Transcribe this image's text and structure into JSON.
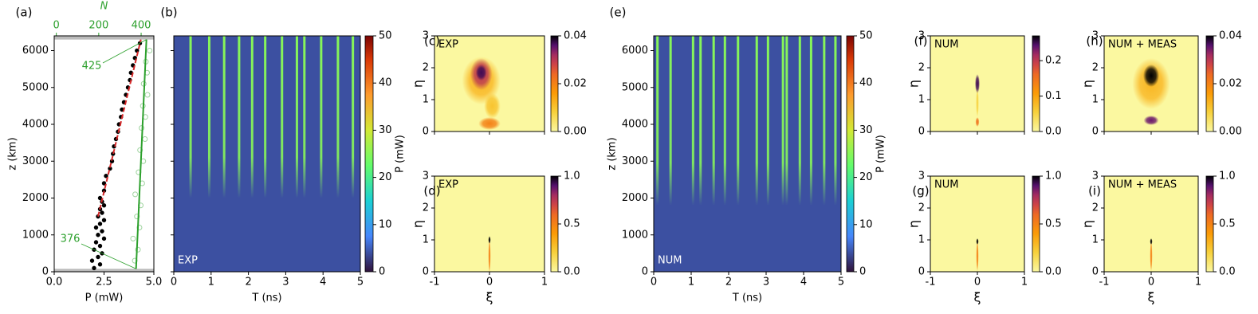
{
  "chart_data": [
    {
      "type": "scatter",
      "label": "(a)",
      "xlabel": "P (mW)",
      "ylabel": "z (km)",
      "x2label": "N",
      "xlim": [
        0,
        5
      ],
      "xticks": [
        {
          "value": 0,
          "label": "0.0"
        },
        2.5,
        {
          "value": 5,
          "label": "5.0"
        }
      ],
      "ylim": [
        0,
        6400
      ],
      "yticks": [
        0,
        1000,
        2000,
        3000,
        4000,
        5000,
        6000
      ],
      "x2lim": [
        -10,
        460
      ],
      "x2ticks": [
        0,
        200,
        400
      ],
      "x2color": "#2ca02c",
      "shaded_bands": [
        [
          0,
          80
        ],
        [
          6300,
          6400
        ]
      ],
      "series": [
        {
          "style": "points",
          "color": "#000000",
          "x": [
            2.0,
            2.3,
            1.9,
            2.2,
            2.4,
            2.0,
            2.3,
            2.1,
            2.5,
            2.2,
            2.4,
            2.1,
            2.3,
            2.5,
            2.2,
            2.4,
            2.3,
            2.5,
            2.4,
            2.3,
            2.5,
            2.5,
            2.6,
            2.8,
            2.9,
            2.95,
            3.0,
            3.1,
            3.2,
            3.25,
            3.35,
            3.4,
            3.5,
            3.6,
            3.7,
            3.8,
            3.85,
            3.95,
            4.05,
            4.15,
            4.3
          ],
          "y": [
            100,
            200,
            300,
            400,
            500,
            600,
            700,
            800,
            900,
            1000,
            1100,
            1200,
            1300,
            1400,
            1500,
            1600,
            1700,
            1800,
            1900,
            2000,
            2200,
            2400,
            2600,
            2800,
            3000,
            3200,
            3400,
            3600,
            3800,
            4000,
            4200,
            4400,
            4600,
            4800,
            5000,
            5200,
            5400,
            5600,
            5800,
            6000,
            6200
          ]
        },
        {
          "style": "dashed",
          "color": "#d62728",
          "x": [
            2.2,
            4.35
          ],
          "y": [
            1500,
            6300
          ]
        },
        {
          "style": "open",
          "color": "#2ca02c",
          "axis": "x2",
          "x": [
            370,
            385,
            362,
            392,
            380,
            398,
            372,
            405,
            388,
            410,
            395,
            418,
            402,
            420,
            408,
            430,
            412,
            428,
            422,
            440
          ],
          "y": [
            300,
            600,
            900,
            1200,
            1500,
            1800,
            2100,
            2400,
            2700,
            3000,
            3300,
            3600,
            3900,
            4200,
            4500,
            4800,
            5100,
            5400,
            5700,
            6000
          ]
        },
        {
          "style": "line",
          "color": "#2ca02c",
          "axis": "x2",
          "x": [
            376,
            425
          ],
          "y": [
            80,
            6300
          ]
        }
      ],
      "annotations": [
        "425",
        "376"
      ]
    },
    {
      "type": "heatmap",
      "label": "(b)",
      "xlabel": "T (ns)",
      "inset": "EXP",
      "show_yticklabels": false,
      "xlim": [
        0,
        5
      ],
      "xticks": [
        0,
        1,
        2,
        3,
        4,
        5
      ],
      "ylim": [
        0,
        6400
      ],
      "yticks": [
        0,
        1000,
        2000,
        3000,
        4000,
        5000,
        6000
      ],
      "colormap": "turbo",
      "background_value": 4,
      "streaks": {
        "t": [
          0.45,
          0.95,
          1.35,
          1.75,
          2.1,
          2.45,
          2.9,
          3.3,
          3.5,
          3.95,
          4.4,
          4.8
        ],
        "z_start": 2000,
        "value": 25
      },
      "colorbar": {
        "label": "P (mW)",
        "lim": [
          0,
          50
        ],
        "ticks": [
          0,
          10,
          20,
          30,
          40,
          50
        ]
      }
    },
    {
      "type": "heatmap",
      "label": "(c)",
      "ylabel": "η",
      "inset": "EXP",
      "show_xticklabels": false,
      "xlim": [
        -1,
        1
      ],
      "xticks": [
        -1,
        0,
        1
      ],
      "ylim": [
        0,
        3
      ],
      "yticks": [
        0,
        1,
        2,
        3
      ],
      "colormap": "inferno_r",
      "background_value": 0,
      "peaks": [
        {
          "x": -0.15,
          "y": 1.6,
          "rx": 0.35,
          "ry": 0.75,
          "value": 0.012
        },
        {
          "x": -0.15,
          "y": 1.8,
          "rx": 0.2,
          "ry": 0.5,
          "value": 0.03
        },
        {
          "x": -0.15,
          "y": 1.85,
          "rx": 0.1,
          "ry": 0.25,
          "value": 0.037
        },
        {
          "x": 0.05,
          "y": 0.8,
          "rx": 0.15,
          "ry": 0.4,
          "value": 0.01
        },
        {
          "x": 0.0,
          "y": 0.25,
          "rx": 0.2,
          "ry": 0.2,
          "value": 0.02
        }
      ],
      "colorbar": {
        "lim": [
          0,
          0.04
        ],
        "ticks": [
          {
            "value": 0,
            "label": "0.00"
          },
          0.02,
          0.04
        ]
      }
    },
    {
      "type": "heatmap",
      "label": "(d)",
      "ylabel": "η",
      "xlabel": "ξ",
      "inset": "EXP",
      "xlim": [
        -1,
        1
      ],
      "xticks": [
        -1,
        0,
        1
      ],
      "ylim": [
        0,
        3
      ],
      "yticks": [
        0,
        1,
        2,
        3
      ],
      "colormap": "inferno_r",
      "background_value": 0,
      "peaks": [
        {
          "x": 0,
          "y": 0.5,
          "rx": 0.02,
          "ry": 0.55,
          "value": 0.5
        },
        {
          "x": 0,
          "y": 1.0,
          "rx": 0.02,
          "ry": 0.12,
          "value": 1.0
        }
      ],
      "colorbar": {
        "lim": [
          0,
          1
        ],
        "ticks": [
          {
            "value": 0,
            "label": "0.0"
          },
          0.5,
          {
            "value": 1,
            "label": "1.0"
          }
        ]
      }
    },
    {
      "type": "heatmap",
      "label": "(e)",
      "xlabel": "T (ns)",
      "ylabel": "z (km)",
      "inset": "NUM",
      "xlim": [
        0,
        5
      ],
      "xticks": [
        0,
        1,
        2,
        3,
        4,
        5
      ],
      "ylim": [
        0,
        6400
      ],
      "yticks": [
        0,
        1000,
        2000,
        3000,
        4000,
        5000,
        6000
      ],
      "colormap": "turbo",
      "background_value": 4,
      "streaks": {
        "t": [
          0.1,
          0.45,
          1.05,
          1.25,
          1.6,
          1.9,
          2.25,
          2.75,
          3.05,
          3.45,
          3.55,
          3.9,
          4.2,
          4.55,
          4.85
        ],
        "z_start": 1800,
        "value": 25
      },
      "colorbar": {
        "label": "P (mW)",
        "lim": [
          0,
          50
        ],
        "ticks": [
          0,
          10,
          20,
          30,
          40,
          50
        ]
      }
    },
    {
      "type": "heatmap",
      "label": "(f)",
      "ylabel": "η",
      "inset": "NUM",
      "show_xticklabels": false,
      "xlim": [
        -1,
        1
      ],
      "xticks": [
        -1,
        0,
        1
      ],
      "ylim": [
        0,
        3
      ],
      "yticks": [
        0,
        1,
        2,
        3
      ],
      "colormap": "inferno_r",
      "background_value": 0,
      "peaks": [
        {
          "x": 0,
          "y": 0.9,
          "rx": 0.03,
          "ry": 0.45,
          "value": 0.05
        },
        {
          "x": 0,
          "y": 1.5,
          "rx": 0.05,
          "ry": 0.3,
          "value": 0.25
        },
        {
          "x": 0,
          "y": 0.3,
          "rx": 0.04,
          "ry": 0.15,
          "value": 0.15
        }
      ],
      "colorbar": {
        "lim": [
          0,
          0.27
        ],
        "ticks": [
          {
            "value": 0,
            "label": "0.0"
          },
          0.1,
          0.2
        ]
      }
    },
    {
      "type": "heatmap",
      "label": "(g)",
      "ylabel": "η",
      "xlabel": "ξ",
      "inset": "NUM",
      "xlim": [
        -1,
        1
      ],
      "xticks": [
        -1,
        0,
        1
      ],
      "ylim": [
        0,
        3
      ],
      "yticks": [
        0,
        1,
        2,
        3
      ],
      "colormap": "inferno_r",
      "background_value": 0,
      "peaks": [
        {
          "x": 0,
          "y": 0.5,
          "rx": 0.02,
          "ry": 0.5,
          "value": 0.5
        },
        {
          "x": 0,
          "y": 0.95,
          "rx": 0.02,
          "ry": 0.1,
          "value": 1.0
        }
      ],
      "colorbar": {
        "lim": [
          0,
          1
        ],
        "ticks": [
          {
            "value": 0,
            "label": "0.0"
          },
          0.5,
          {
            "value": 1,
            "label": "1.0"
          }
        ]
      }
    },
    {
      "type": "heatmap",
      "label": "(h)",
      "ylabel": "η",
      "inset": "NUM + MEAS",
      "show_xticklabels": false,
      "xlim": [
        -1,
        1
      ],
      "xticks": [
        -1,
        0,
        1
      ],
      "ylim": [
        0,
        3
      ],
      "yticks": [
        0,
        1,
        2,
        3
      ],
      "colormap": "inferno_r",
      "background_value": 0,
      "peaks": [
        {
          "x": 0,
          "y": 1.5,
          "rx": 0.4,
          "ry": 0.8,
          "value": 0.012
        },
        {
          "x": 0,
          "y": 1.75,
          "rx": 0.17,
          "ry": 0.35,
          "value": 0.04
        },
        {
          "x": 0,
          "y": 0.35,
          "rx": 0.16,
          "ry": 0.15,
          "value": 0.035
        }
      ],
      "colorbar": {
        "lim": [
          0,
          0.04
        ],
        "ticks": [
          {
            "value": 0,
            "label": "0.00"
          },
          0.02,
          0.04
        ]
      }
    },
    {
      "type": "heatmap",
      "label": "(i)",
      "ylabel": "η",
      "xlabel": "ξ",
      "inset": "NUM + MEAS",
      "xlim": [
        -1,
        1
      ],
      "xticks": [
        -1,
        0,
        1
      ],
      "ylim": [
        0,
        3
      ],
      "yticks": [
        0,
        1,
        2,
        3
      ],
      "colormap": "inferno_r",
      "background_value": 0,
      "peaks": [
        {
          "x": 0,
          "y": 0.5,
          "rx": 0.02,
          "ry": 0.5,
          "value": 0.5
        },
        {
          "x": 0,
          "y": 0.95,
          "rx": 0.02,
          "ry": 0.1,
          "value": 1.0
        }
      ],
      "colorbar": {
        "lim": [
          0,
          1
        ],
        "ticks": [
          {
            "value": 0,
            "label": "0.0"
          },
          0.5,
          {
            "value": 1,
            "label": "1.0"
          }
        ]
      }
    }
  ]
}
